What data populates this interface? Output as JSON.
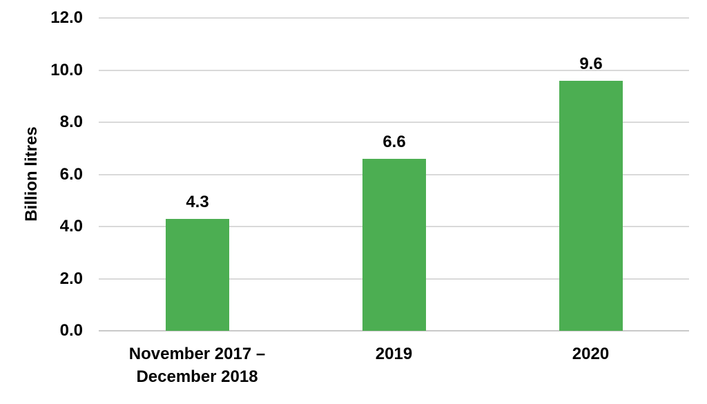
{
  "chart_data": {
    "type": "bar",
    "title": "",
    "xlabel": "",
    "ylabel": "Billion litres",
    "categories": [
      "November 2017 –\nDecember 2018",
      "2019",
      "2020"
    ],
    "values": [
      4.3,
      6.6,
      9.6
    ],
    "value_labels": [
      "4.3",
      "6.6",
      "9.6"
    ],
    "ylim": [
      0,
      12
    ],
    "yticks": [
      0,
      2,
      4,
      6,
      8,
      10,
      12
    ],
    "ytick_labels": [
      "0.0",
      "2.0",
      "4.0",
      "6.0",
      "8.0",
      "10.0",
      "12.0"
    ],
    "grid": "horizontal",
    "legend": "none",
    "colors": {
      "bar": "#4CAE52",
      "gridline": "#D9D9D9",
      "axis_line": "#C9C9C9",
      "text": "#000000",
      "background": "#FFFFFF"
    }
  }
}
